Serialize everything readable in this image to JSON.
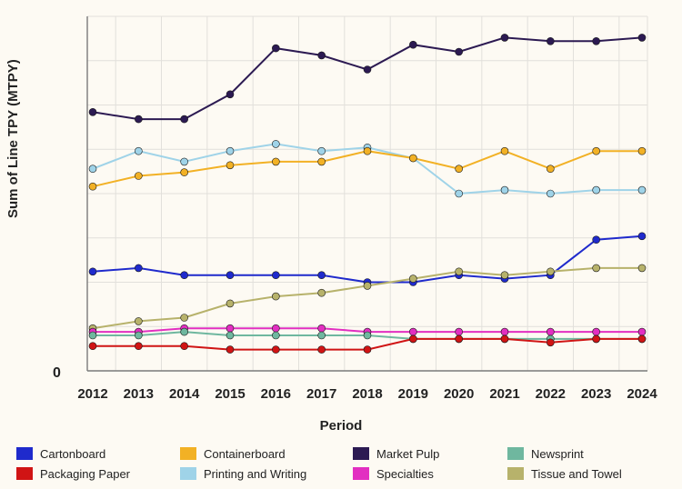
{
  "chart": {
    "type": "line",
    "background_color": "#fdfaf3",
    "grid_color": "#e2e0db",
    "axis_color": "#7a7a7a",
    "y_title": "Sum of Line TPY (MTPY)",
    "x_title": "Period",
    "title_fontsize": 15,
    "tick_fontsize": 15,
    "legend_fontsize": 13,
    "xlim": [
      2012,
      2024
    ],
    "ylim": [
      0,
      100
    ],
    "x_ticks": [
      2012,
      2013,
      2014,
      2015,
      2016,
      2017,
      2018,
      2019,
      2020,
      2021,
      2022,
      2023,
      2024
    ],
    "y_zero_label": "0",
    "hgrid_y": [
      0,
      12.5,
      25,
      37.5,
      50,
      62.5,
      75,
      87.5,
      100
    ],
    "x": [
      2012,
      2013,
      2014,
      2015,
      2016,
      2017,
      2018,
      2019,
      2020,
      2021,
      2022,
      2023,
      2024
    ],
    "marker_style": "circle",
    "marker_radius": 4,
    "line_width": 2,
    "series": [
      {
        "name": "Market Pulp",
        "color": "#2c1a52",
        "values": [
          73,
          71,
          71,
          78,
          91,
          89,
          85,
          92,
          90,
          94,
          93,
          93,
          94
        ]
      },
      {
        "name": "Printing and Writing",
        "color": "#9fd3e8",
        "values": [
          57,
          62,
          59,
          62,
          64,
          62,
          63,
          60,
          50,
          51,
          50,
          51,
          51
        ]
      },
      {
        "name": "Containerboard",
        "color": "#f2b125",
        "values": [
          52,
          55,
          56,
          58,
          59,
          59,
          62,
          60,
          57,
          62,
          57,
          62,
          62
        ]
      },
      {
        "name": "Cartonboard",
        "color": "#1f2acc",
        "values": [
          28,
          29,
          27,
          27,
          27,
          27,
          25,
          25,
          27,
          26,
          27,
          37,
          38
        ]
      },
      {
        "name": "Tissue and Towel",
        "color": "#b7b26b",
        "values": [
          12,
          14,
          15,
          19,
          21,
          22,
          24,
          26,
          28,
          27,
          28,
          29,
          29
        ]
      },
      {
        "name": "Specialties",
        "color": "#e22fc1",
        "values": [
          11,
          11,
          12,
          12,
          12,
          12,
          11,
          11,
          11,
          11,
          11,
          11,
          11
        ]
      },
      {
        "name": "Newsprint",
        "color": "#6fb79f",
        "values": [
          10,
          10,
          11,
          10,
          10,
          10,
          10,
          9,
          9,
          9,
          9,
          9,
          9
        ]
      },
      {
        "name": "Packaging Paper",
        "color": "#d01414",
        "values": [
          7,
          7,
          7,
          6,
          6,
          6,
          6,
          9,
          9,
          9,
          8,
          9,
          9
        ]
      }
    ],
    "legend_order": [
      "Cartonboard",
      "Containerboard",
      "Market Pulp",
      "Newsprint",
      "Packaging Paper",
      "Printing and Writing",
      "Specialties",
      "Tissue and Towel"
    ],
    "legend_positions": {
      "Cartonboard": {
        "row": 0,
        "x": 0
      },
      "Containerboard": {
        "row": 0,
        "x": 180
      },
      "Market Pulp": {
        "row": 0,
        "x": 370
      },
      "Newsprint": {
        "row": 0,
        "x": 540
      },
      "Packaging Paper": {
        "row": 1,
        "x": 0
      },
      "Printing and Writing": {
        "row": 1,
        "x": 180
      },
      "Specialties": {
        "row": 1,
        "x": 370
      },
      "Tissue and Towel": {
        "row": 1,
        "x": 540
      }
    }
  }
}
